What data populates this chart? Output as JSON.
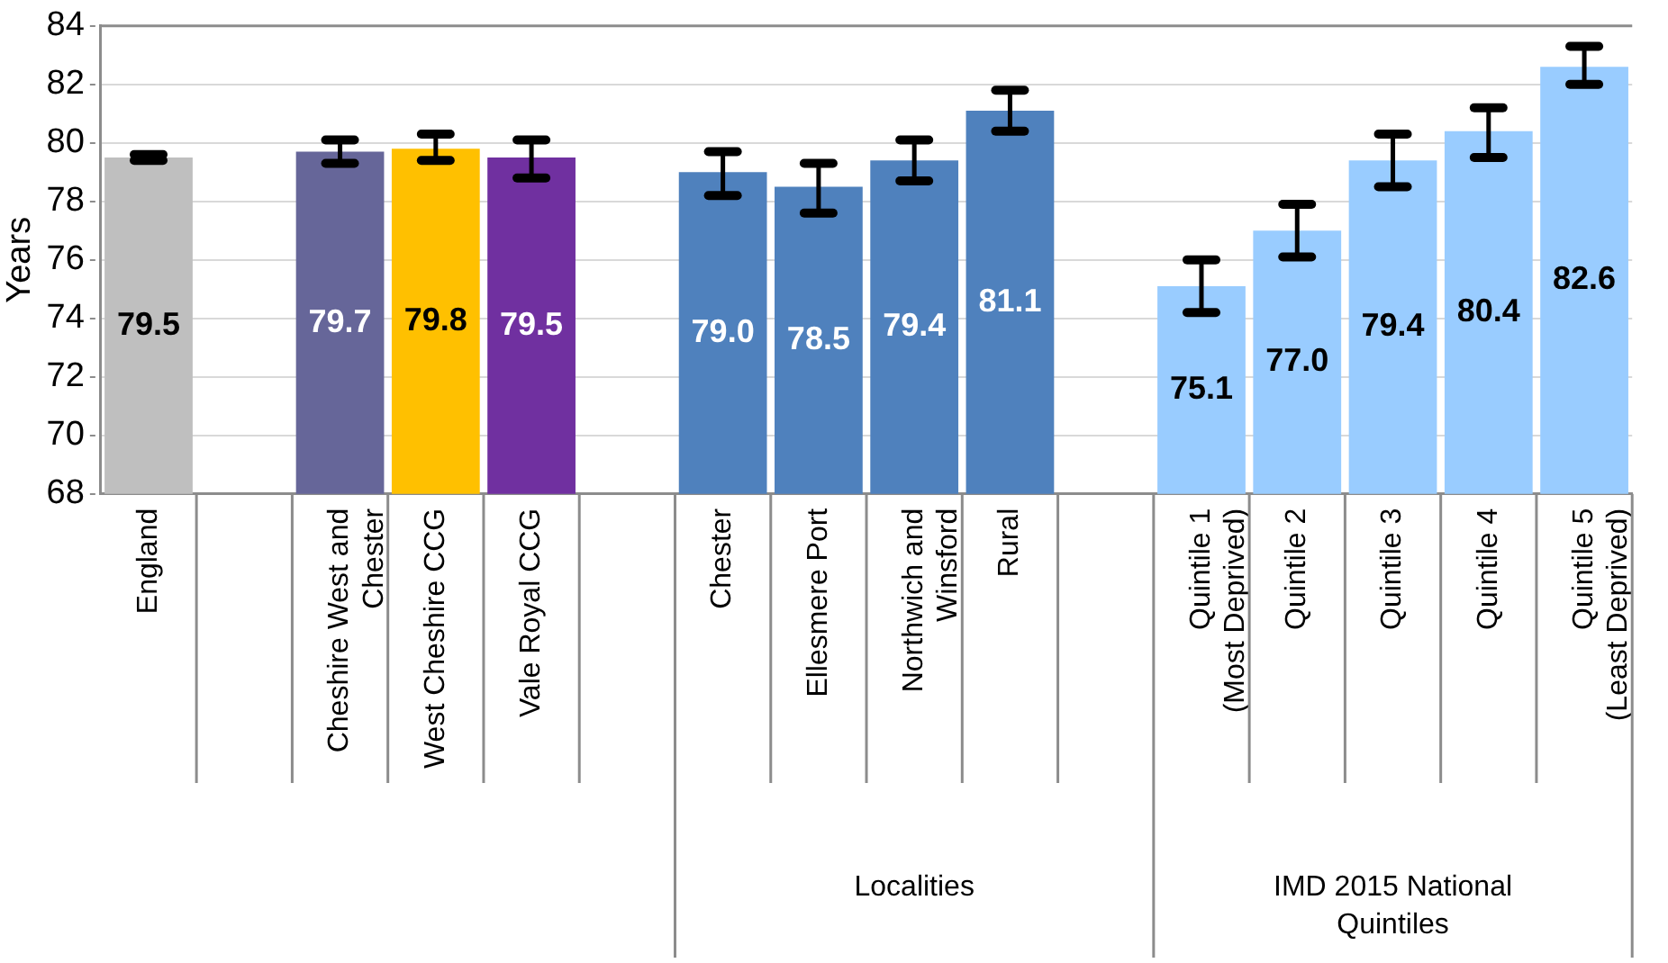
{
  "chart_data": {
    "type": "bar",
    "ylabel": "Years",
    "categories": [
      "England",
      null,
      "Cheshire West and\nChester",
      "West Cheshire CCG",
      "Vale Royal CCG",
      null,
      "Chester",
      "Ellesmere Port",
      "Northwich and\nWinsford",
      "Rural",
      null,
      "Quintile 1\n(Most Deprived)",
      "Quintile 2",
      "Quintile 3",
      "Quintile 4",
      "Quintile 5\n(Least Deprived)"
    ],
    "values": [
      79.5,
      null,
      79.7,
      79.8,
      79.5,
      null,
      79.0,
      78.5,
      79.4,
      81.1,
      null,
      75.1,
      77.0,
      79.4,
      80.4,
      82.6
    ],
    "colors": [
      "#bfbfbf",
      null,
      "#666699",
      "#ffc000",
      "#7030a0",
      null,
      "#4f81bd",
      "#4f81bd",
      "#4f81bd",
      "#4f81bd",
      null,
      "#99ccff",
      "#99ccff",
      "#99ccff",
      "#99ccff",
      "#99ccff"
    ],
    "errors": [
      [
        79.4,
        79.6
      ],
      null,
      [
        79.3,
        80.1
      ],
      [
        79.4,
        80.3
      ],
      [
        78.8,
        80.1
      ],
      null,
      [
        78.2,
        79.7
      ],
      [
        77.6,
        79.3
      ],
      [
        78.7,
        80.1
      ],
      [
        80.4,
        81.8
      ],
      null,
      [
        74.2,
        76.0
      ],
      [
        76.1,
        77.9
      ],
      [
        78.5,
        80.3
      ],
      [
        79.5,
        81.2
      ],
      [
        82.0,
        83.3
      ]
    ],
    "ylim": [
      68,
      84
    ],
    "yticks": [
      68,
      70,
      72,
      74,
      76,
      78,
      80,
      82,
      84
    ],
    "value_labels": [
      "79.5",
      null,
      "79.7",
      "79.8",
      "79.5",
      null,
      "79.0",
      "78.5",
      "79.4",
      "81.1",
      null,
      "75.1",
      "77.0",
      "79.4",
      "80.4",
      "82.6"
    ],
    "grid": "y",
    "legend": false,
    "annotations": [
      "Localities",
      "IMD 2015 National\nQuintiles"
    ]
  }
}
